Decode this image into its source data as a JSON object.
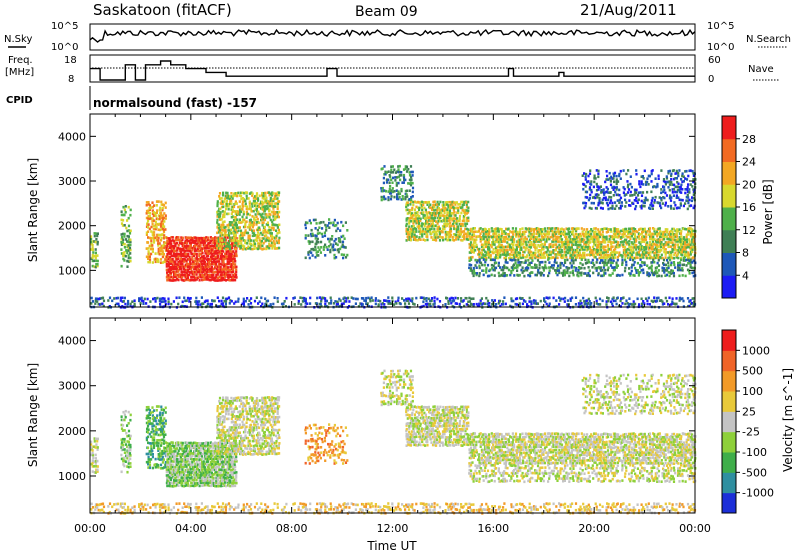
{
  "header": {
    "station": "Saskatoon (fitACF)",
    "beam": "Beam 09",
    "date": "21/Aug/2011"
  },
  "top_panels": {
    "nsky_label": "N.Sky",
    "nsky_ticks": [
      "10^5",
      "10^0"
    ],
    "nsearch_label": "N.Search",
    "nsearch_ticks": [
      "10^5",
      "10^0"
    ],
    "freq_label": "Freq.",
    "freq_unit": "[MHz]",
    "freq_ticks": [
      "18",
      "8"
    ],
    "nave_label": "Nave",
    "nave_ticks": [
      "60",
      "0"
    ],
    "cpid_label": "CPID",
    "cpid_value": "normalsound (fast) -157"
  },
  "chart_data": [
    {
      "type": "heatmap",
      "name": "power-panel",
      "ylabel": "Slant Range [km]",
      "ylim": [
        180,
        4500
      ],
      "yticks": [
        "1000",
        "2000",
        "3000",
        "4000"
      ],
      "xlim": [
        0,
        24
      ],
      "colorbar": {
        "label": "Power [dB]",
        "ticks": [
          "4",
          "8",
          "12",
          "16",
          "20",
          "24",
          "28"
        ],
        "colors": [
          "#1c1cf4",
          "#1e58b8",
          "#3f7f55",
          "#4fb04a",
          "#d8d82e",
          "#f3a723",
          "#f26a22",
          "#ee1d1d"
        ]
      }
    },
    {
      "type": "heatmap",
      "name": "velocity-panel",
      "ylabel": "Slant Range [km]",
      "ylim": [
        180,
        4500
      ],
      "yticks": [
        "1000",
        "2000",
        "3000",
        "4000"
      ],
      "xlim": [
        0,
        24
      ],
      "xlabel": "Time UT",
      "xticks": [
        "00:00",
        "04:00",
        "08:00",
        "12:00",
        "16:00",
        "20:00",
        "00:00"
      ],
      "colorbar": {
        "label": "Velocity [m s^-1]",
        "ticks": [
          "1000",
          "500",
          "100",
          "25",
          "-25",
          "-100",
          "-500",
          "-1000"
        ],
        "colors": [
          "#1c2fd8",
          "#2f8fa0",
          "#3fae4a",
          "#8ed03a",
          "#c4c4c4",
          "#e8c93a",
          "#f29a28",
          "#f06428",
          "#ee1d1d"
        ]
      }
    }
  ]
}
